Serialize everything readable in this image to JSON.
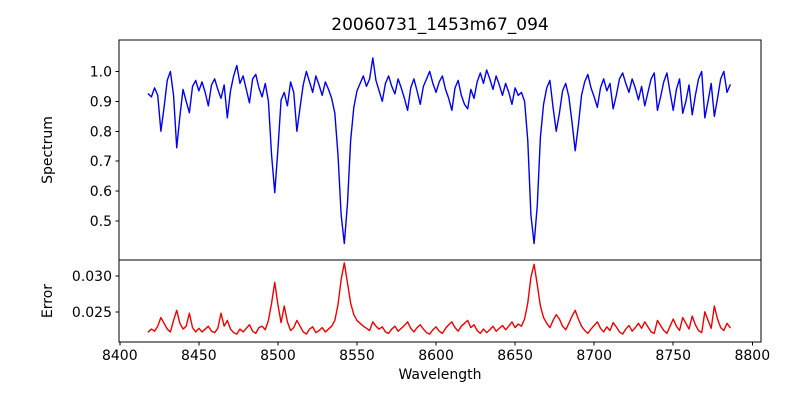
{
  "title": "20060731_1453m67_094",
  "chart_data": {
    "type": "line",
    "title": "20060731_1453m67_094",
    "xlabel": "Wavelength",
    "grid": false,
    "legend": "none",
    "xlim": [
      8399.5,
      8805.5
    ],
    "x_start": 8418,
    "x_step": 2,
    "xticks": {
      "values": [
        8400,
        8450,
        8500,
        8550,
        8600,
        8650,
        8700,
        8750,
        8800
      ],
      "labels": [
        "8400",
        "8450",
        "8500",
        "8550",
        "8600",
        "8650",
        "8700",
        "8750",
        "8800"
      ]
    },
    "panels": [
      {
        "name": "spectrum",
        "ylabel": "Spectrum",
        "color": "#0000ee",
        "ylim": [
          0.37,
          1.105
        ],
        "yticks": {
          "values": [
            0.5,
            0.6,
            0.7,
            0.8,
            0.9,
            1.0
          ],
          "labels": [
            "0.5",
            "0.6",
            "0.7",
            "0.8",
            "0.9",
            "1.0"
          ]
        },
        "values": [
          0.925,
          0.915,
          0.945,
          0.92,
          0.8,
          0.88,
          0.97,
          1.0,
          0.92,
          0.745,
          0.85,
          0.94,
          0.9,
          0.862,
          0.95,
          0.97,
          0.935,
          0.965,
          0.93,
          0.885,
          0.955,
          0.975,
          0.94,
          0.91,
          0.955,
          0.845,
          0.935,
          0.985,
          1.02,
          0.96,
          0.985,
          0.94,
          0.895,
          0.975,
          0.99,
          0.945,
          0.915,
          0.96,
          0.9,
          0.72,
          0.595,
          0.74,
          0.905,
          0.93,
          0.885,
          0.965,
          0.93,
          0.8,
          0.88,
          0.955,
          1.0,
          0.965,
          0.93,
          0.985,
          0.955,
          0.92,
          0.965,
          0.94,
          0.91,
          0.86,
          0.72,
          0.52,
          0.425,
          0.56,
          0.77,
          0.88,
          0.935,
          0.96,
          0.985,
          0.95,
          0.975,
          1.045,
          0.97,
          0.935,
          0.9,
          0.96,
          0.985,
          0.95,
          0.925,
          0.975,
          0.945,
          0.91,
          0.87,
          0.945,
          0.975,
          0.935,
          0.89,
          0.95,
          0.975,
          1.0,
          0.96,
          0.93,
          0.965,
          0.985,
          0.94,
          0.91,
          0.87,
          0.945,
          0.97,
          0.92,
          0.89,
          0.875,
          0.94,
          0.91,
          0.965,
          0.995,
          0.96,
          1.005,
          0.975,
          0.94,
          0.985,
          0.955,
          0.92,
          0.96,
          0.93,
          0.89,
          0.945,
          0.92,
          0.93,
          0.9,
          0.77,
          0.52,
          0.425,
          0.55,
          0.78,
          0.89,
          0.945,
          0.97,
          0.88,
          0.8,
          0.86,
          0.935,
          0.96,
          0.915,
          0.83,
          0.735,
          0.82,
          0.92,
          0.965,
          0.99,
          0.945,
          0.915,
          0.88,
          0.945,
          0.975,
          0.935,
          0.96,
          0.875,
          0.92,
          0.975,
          0.995,
          0.96,
          0.93,
          0.975,
          0.945,
          0.905,
          0.95,
          0.885,
          0.93,
          0.975,
          0.995,
          0.87,
          0.915,
          0.965,
          0.995,
          0.93,
          0.87,
          0.94,
          0.975,
          0.86,
          0.9,
          0.955,
          0.855,
          0.92,
          0.975,
          1.0,
          0.845,
          0.9,
          0.96,
          0.85,
          0.91,
          0.975,
          1.0,
          0.93,
          0.955
        ]
      },
      {
        "name": "error",
        "ylabel": "Error",
        "color": "#ee0000",
        "ylim": [
          0.0208,
          0.0322
        ],
        "yticks": {
          "values": [
            0.025,
            0.03
          ],
          "labels": [
            "0.025",
            "0.030"
          ]
        },
        "values": [
          0.0222,
          0.0226,
          0.0223,
          0.023,
          0.0242,
          0.0234,
          0.0226,
          0.0222,
          0.0238,
          0.0252,
          0.0234,
          0.0226,
          0.023,
          0.0248,
          0.0228,
          0.0222,
          0.0227,
          0.0222,
          0.0226,
          0.023,
          0.0223,
          0.0221,
          0.0227,
          0.0248,
          0.023,
          0.0238,
          0.0226,
          0.0221,
          0.0219,
          0.0226,
          0.0222,
          0.0227,
          0.0232,
          0.0223,
          0.022,
          0.0228,
          0.023,
          0.0225,
          0.0238,
          0.0262,
          0.0291,
          0.026,
          0.0235,
          0.0258,
          0.0236,
          0.0224,
          0.0228,
          0.0238,
          0.023,
          0.0222,
          0.0219,
          0.0226,
          0.0229,
          0.0221,
          0.0224,
          0.0228,
          0.0222,
          0.0226,
          0.023,
          0.0238,
          0.026,
          0.0295,
          0.0318,
          0.029,
          0.0262,
          0.0246,
          0.0238,
          0.0234,
          0.023,
          0.0227,
          0.0224,
          0.0236,
          0.023,
          0.0226,
          0.0229,
          0.0222,
          0.022,
          0.0226,
          0.023,
          0.0223,
          0.0227,
          0.0231,
          0.0236,
          0.0227,
          0.0222,
          0.0228,
          0.0232,
          0.0226,
          0.0221,
          0.0219,
          0.0225,
          0.0229,
          0.0223,
          0.022,
          0.0227,
          0.0232,
          0.0236,
          0.0228,
          0.0223,
          0.023,
          0.0234,
          0.0238,
          0.0228,
          0.0232,
          0.0224,
          0.022,
          0.0226,
          0.0221,
          0.0225,
          0.023,
          0.0223,
          0.0227,
          0.0231,
          0.0225,
          0.023,
          0.0236,
          0.0228,
          0.0233,
          0.023,
          0.024,
          0.0262,
          0.0298,
          0.0316,
          0.0288,
          0.0258,
          0.0242,
          0.0234,
          0.0228,
          0.0238,
          0.0246,
          0.024,
          0.023,
          0.0225,
          0.0234,
          0.0244,
          0.0252,
          0.024,
          0.023,
          0.0224,
          0.022,
          0.0226,
          0.0231,
          0.0236,
          0.0227,
          0.0222,
          0.0229,
          0.0224,
          0.0235,
          0.0229,
          0.0222,
          0.0219,
          0.0226,
          0.0231,
          0.0223,
          0.0228,
          0.0234,
          0.0227,
          0.0236,
          0.0229,
          0.0222,
          0.022,
          0.0238,
          0.0231,
          0.0224,
          0.022,
          0.023,
          0.024,
          0.023,
          0.0224,
          0.0242,
          0.0234,
          0.0226,
          0.0244,
          0.0232,
          0.0224,
          0.0221,
          0.025,
          0.0238,
          0.0227,
          0.0258,
          0.024,
          0.0228,
          0.0224,
          0.0234,
          0.0228
        ]
      }
    ]
  }
}
